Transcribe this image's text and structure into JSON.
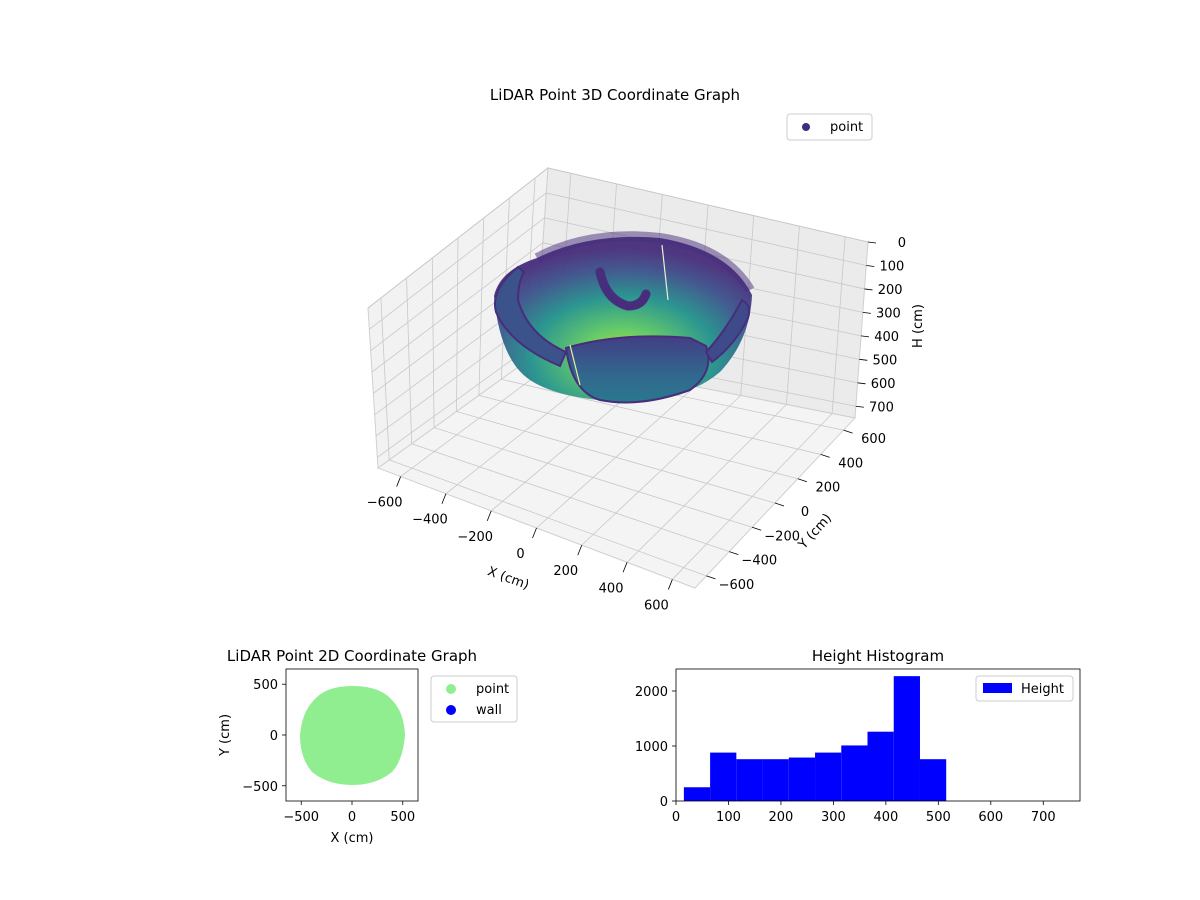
{
  "chart_data": [
    {
      "type": "scatter",
      "projection": "3d",
      "title": "LiDAR Point 3D Coordinate Graph",
      "xlabel": "X (cm)",
      "ylabel": "Y (cm)",
      "zlabel": "H (cm)",
      "xlim": [
        -700,
        700
      ],
      "ylim": [
        -700,
        700
      ],
      "zlim": [
        0,
        750
      ],
      "z_inverted": true,
      "x_ticks": [
        "−600",
        "−400",
        "−200",
        "0",
        "200",
        "400",
        "600"
      ],
      "y_ticks": [
        "−600",
        "−400",
        "−200",
        "0",
        "200",
        "400",
        "600"
      ],
      "z_ticks": [
        "0",
        "100",
        "200",
        "300",
        "400",
        "500",
        "600",
        "700"
      ],
      "colormap": "viridis",
      "legend": {
        "entries": [
          {
            "label": "point",
            "color": "#3b2f7f"
          }
        ],
        "placement": "upper-right"
      },
      "grid": true,
      "shape": "bowl of points, radius ≈ 500 cm, depth 0–510 cm, plus a small inner arc"
    },
    {
      "type": "scatter",
      "title": "LiDAR Point 2D Coordinate Graph",
      "xlabel": "X (cm)",
      "ylabel": "Y (cm)",
      "xlim": [
        -650,
        650
      ],
      "ylim": [
        -650,
        650
      ],
      "x_ticks": [
        "−500",
        "0",
        "500"
      ],
      "y_ticks": [
        "−500",
        "0",
        "500"
      ],
      "series": [
        {
          "name": "point",
          "color": "#90ee90",
          "shape": "filled disc radius ≈ 500 cm centered at (0,0)"
        },
        {
          "name": "wall",
          "color": "#0000ff",
          "points": []
        }
      ],
      "legend": {
        "placement": "outside-right-top"
      }
    },
    {
      "type": "bar",
      "title": "Height Histogram",
      "xlim": [
        0,
        770
      ],
      "ylim": [
        0,
        2400
      ],
      "x_ticks": [
        "0",
        "100",
        "200",
        "300",
        "400",
        "500",
        "600",
        "700"
      ],
      "y_ticks": [
        "0",
        "1000",
        "2000"
      ],
      "bin_edges": [
        15,
        65,
        115,
        165,
        215,
        265,
        315,
        365,
        415,
        465,
        515
      ],
      "values": [
        250,
        880,
        760,
        760,
        790,
        880,
        1010,
        1260,
        2270,
        760
      ],
      "series": [
        {
          "name": "Height",
          "color": "#0000ff"
        }
      ],
      "legend": {
        "placement": "upper-right"
      }
    }
  ]
}
